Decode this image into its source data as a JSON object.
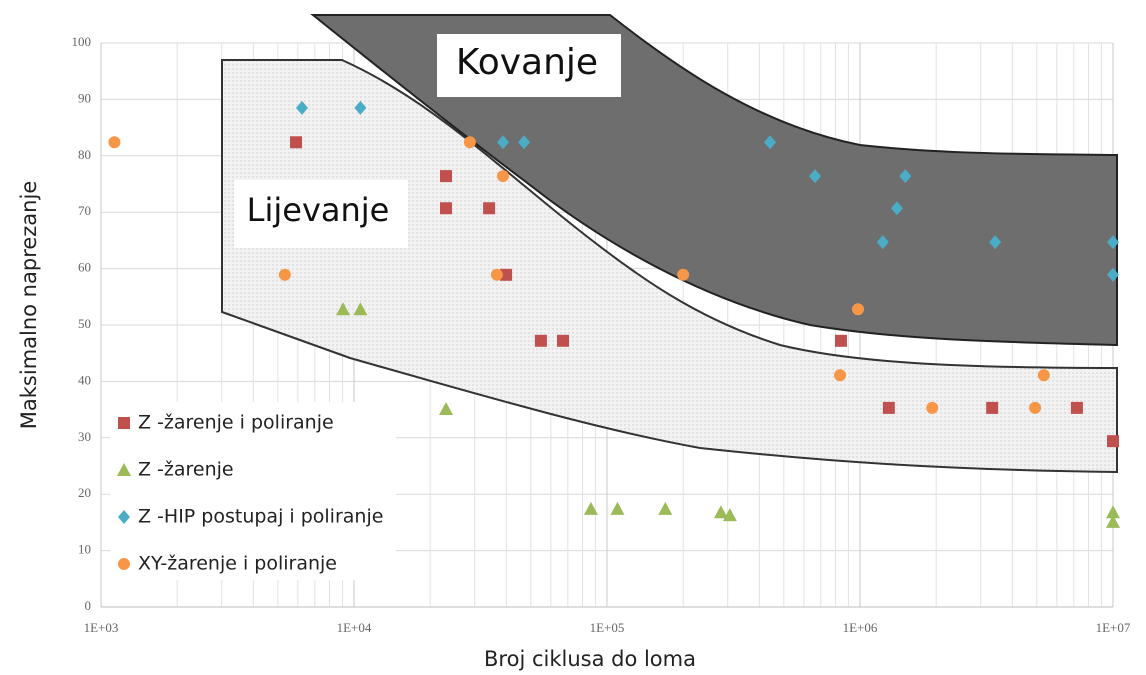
{
  "chart_data": {
    "type": "scatter",
    "x_label": "Broj ciklusa do loma",
    "y_label": "Maksimalno naprezanje",
    "annotations": [
      "Kovanje",
      "Lijevanje"
    ],
    "x_log": true,
    "grid": true,
    "legend": "lower left",
    "xlim": [
      1000,
      10000000
    ],
    "ylim": [
      0,
      100
    ],
    "xticks": [
      {
        "value": 1000,
        "label": "1E+03"
      },
      {
        "value": 10000,
        "label": "1E+04"
      },
      {
        "value": 100000,
        "label": "1E+05"
      },
      {
        "value": 1000000,
        "label": "1E+06"
      },
      {
        "value": 10000000,
        "label": "1E+07"
      }
    ],
    "yticks": [
      0,
      10,
      20,
      30,
      40,
      50,
      60,
      70,
      80,
      90,
      100
    ],
    "series": [
      {
        "name": "Z -žarenje i poliranje",
        "color": "#c0504d",
        "marker": "square",
        "x": [
          5900,
          23100,
          23100,
          34200,
          39900,
          54800,
          67000,
          841000,
          1300000,
          3330000,
          7200000,
          10000000
        ],
        "values": [
          82.4,
          76.4,
          70.7,
          70.7,
          58.9,
          47.2,
          47.2,
          47.2,
          35.3,
          35.3,
          35.3,
          29.4
        ]
      },
      {
        "name": "Z -žarenje",
        "color": "#9bbb59",
        "marker": "triangle",
        "x": [
          9050,
          10600,
          23100,
          86400,
          110000,
          170000,
          282000,
          306000,
          10000000,
          10000000
        ],
        "values": [
          52.8,
          52.8,
          35.1,
          17.4,
          17.4,
          17.4,
          16.8,
          16.3,
          16.8,
          15.1
        ]
      },
      {
        "name": "Z -HIP postupaj i poliranje",
        "color": "#4bacc6",
        "marker": "diamond",
        "x": [
          6230,
          10600,
          38800,
          47000,
          441000,
          664000,
          1510000,
          1400000,
          1230000,
          3420000,
          10000000,
          10000000
        ],
        "values": [
          88.5,
          88.5,
          82.4,
          82.4,
          82.4,
          76.4,
          76.4,
          70.7,
          64.7,
          64.7,
          64.7,
          58.9
        ]
      },
      {
        "name": "XY-žarenje i poliranje",
        "color": "#f79646",
        "marker": "circle",
        "x": [
          1130,
          5330,
          28700,
          38800,
          36700,
          200000,
          982000,
          834000,
          1930000,
          4920000,
          5330000
        ],
        "values": [
          82.4,
          58.9,
          82.4,
          76.4,
          58.9,
          58.9,
          52.8,
          41.1,
          35.3,
          35.3,
          41.1
        ]
      }
    ]
  }
}
